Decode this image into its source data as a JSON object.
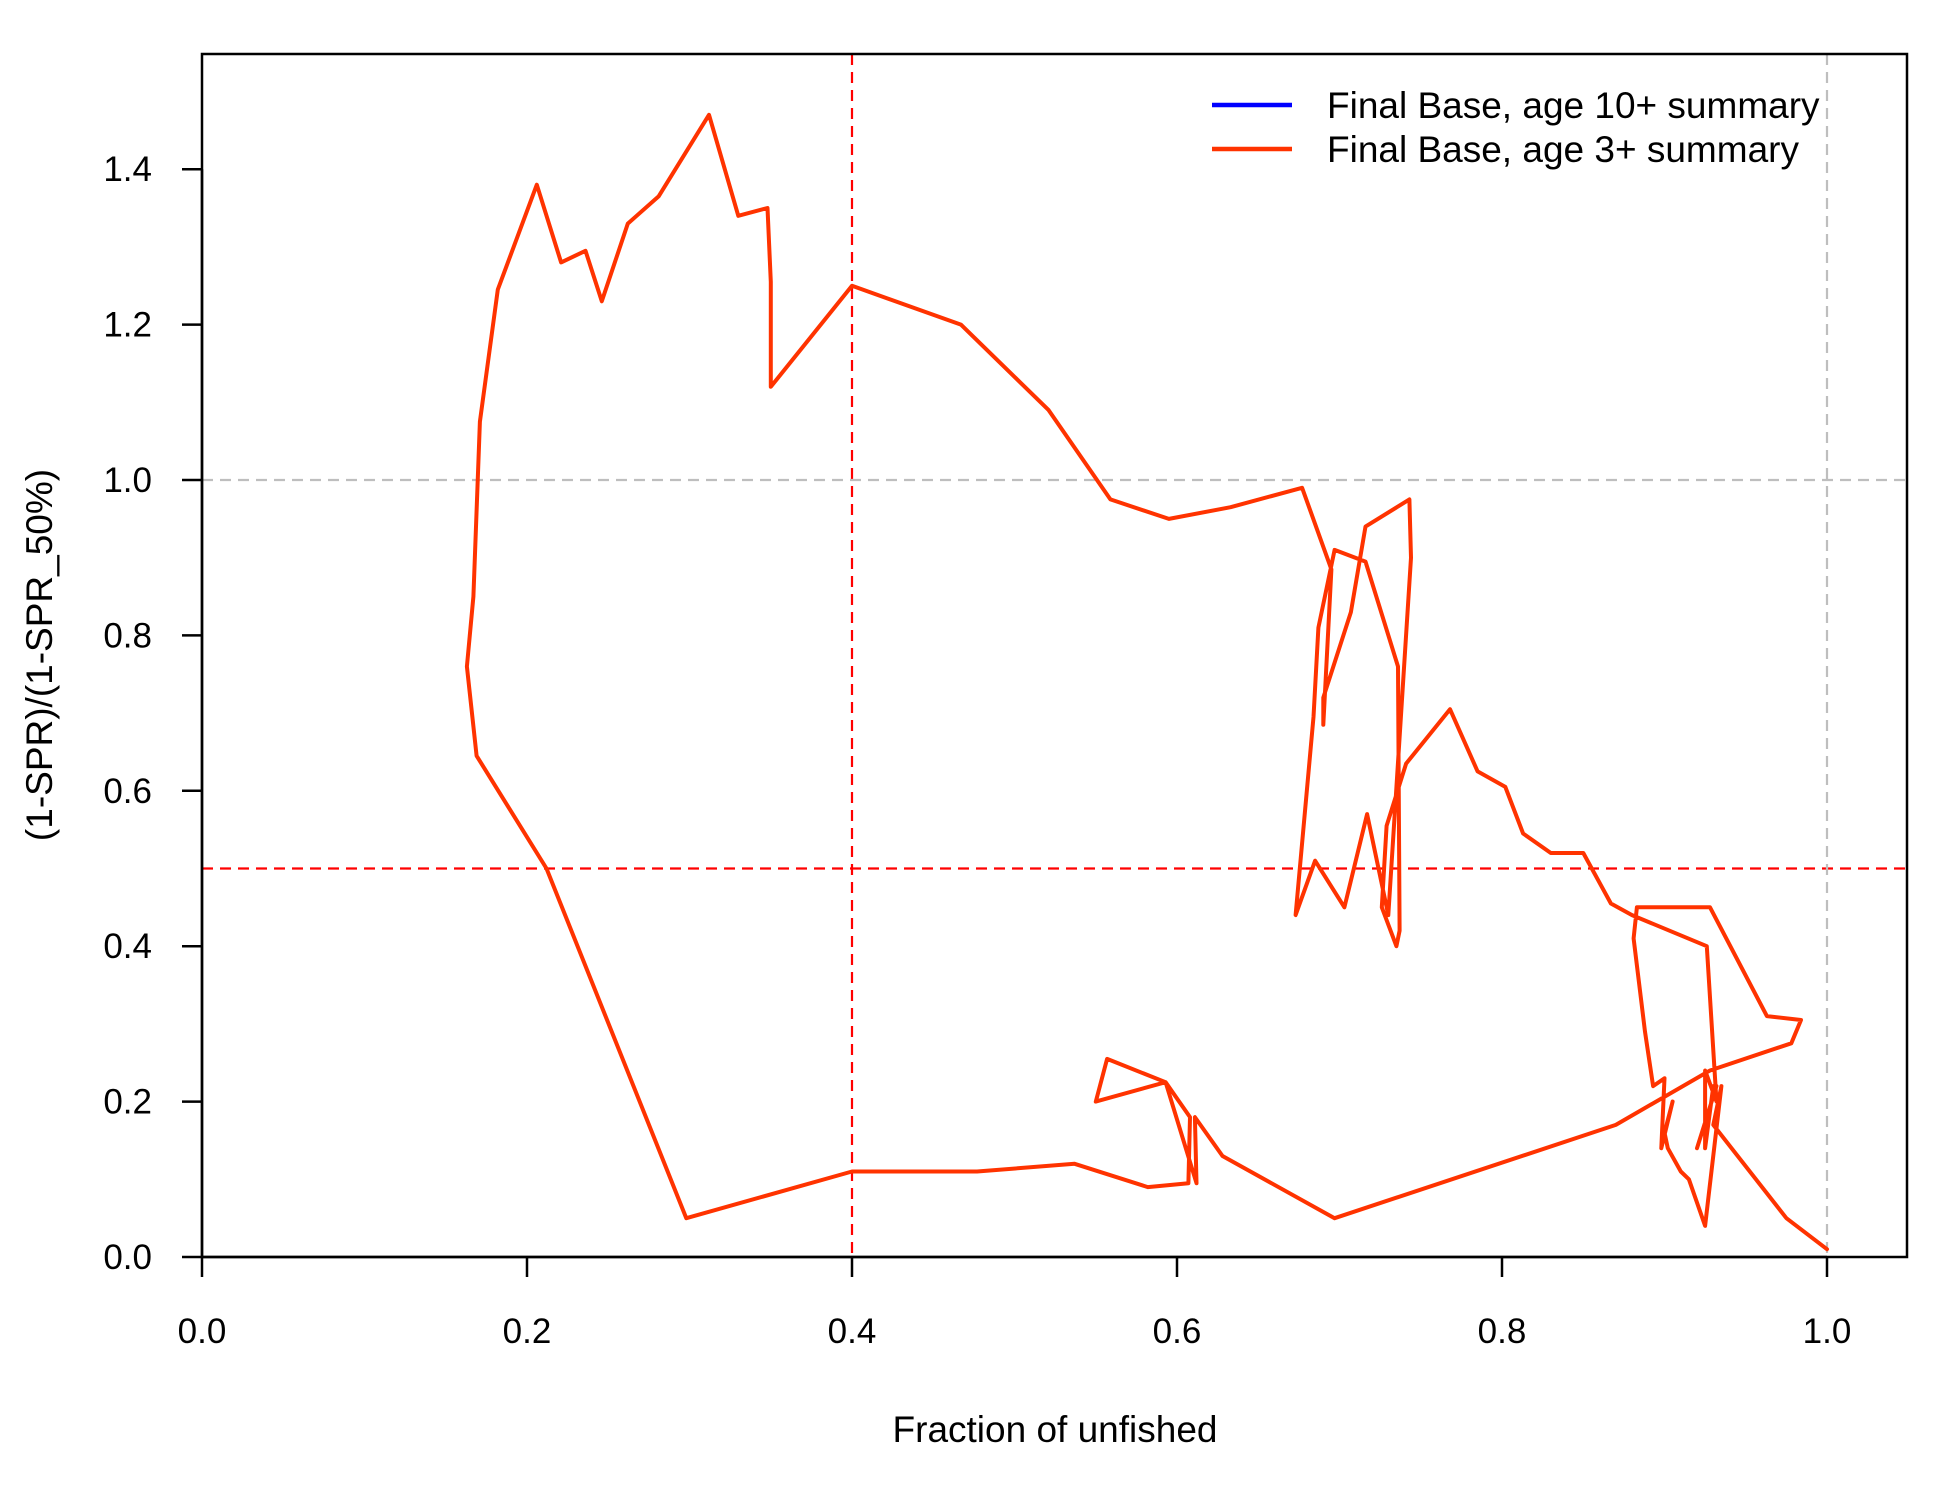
{
  "chart_data": {
    "type": "line",
    "title": "",
    "xlabel": "Fraction of unfished",
    "ylabel": "(1-SPR)/(1-SPR_50%)",
    "xlim": [
      0.0,
      1.05
    ],
    "ylim": [
      0.0,
      1.55
    ],
    "x_ticks": [
      {
        "value": 0.0,
        "label": "0.0"
      },
      {
        "value": 0.2,
        "label": "0.2"
      },
      {
        "value": 0.4,
        "label": "0.4"
      },
      {
        "value": 0.6,
        "label": "0.6"
      },
      {
        "value": 0.8,
        "label": "0.8"
      },
      {
        "value": 1.0,
        "label": "1.0"
      }
    ],
    "y_ticks": [
      {
        "value": 0.0,
        "label": "0.0"
      },
      {
        "value": 0.2,
        "label": "0.2"
      },
      {
        "value": 0.4,
        "label": "0.4"
      },
      {
        "value": 0.6,
        "label": "0.6"
      },
      {
        "value": 0.8,
        "label": "0.8"
      },
      {
        "value": 1.0,
        "label": "1.0"
      },
      {
        "value": 1.2,
        "label": "1.2"
      },
      {
        "value": 1.4,
        "label": "1.4"
      }
    ],
    "reference_lines": [
      {
        "orientation": "vertical",
        "value": 0.4,
        "color": "#ff0000",
        "style": "dashed"
      },
      {
        "orientation": "horizontal",
        "value": 0.5,
        "color": "#ff0000",
        "style": "dashed"
      },
      {
        "orientation": "vertical",
        "value": 1.0,
        "color": "#bebebe",
        "style": "dashed"
      },
      {
        "orientation": "horizontal",
        "value": 1.0,
        "color": "#bebebe",
        "style": "dashed"
      }
    ],
    "legend_position": "top-right",
    "series": [
      {
        "name": "Final Base, age 10+ summary",
        "color": "#0000ff",
        "x": [],
        "y": []
      },
      {
        "name": "Final Base, age 3+ summary",
        "color": "#ff3300",
        "x": [
          1.0,
          0.975,
          0.93,
          0.935,
          0.925,
          0.915,
          0.91,
          0.902,
          0.9,
          0.905,
          0.898,
          0.9,
          0.893,
          0.888,
          0.881,
          0.883,
          0.9,
          0.928,
          0.963,
          0.984,
          0.978,
          0.928,
          0.87,
          0.697,
          0.628,
          0.611,
          0.612,
          0.593,
          0.557,
          0.55,
          0.593,
          0.608,
          0.607,
          0.582,
          0.537,
          0.477,
          0.4,
          0.298,
          0.212,
          0.169,
          0.163,
          0.167,
          0.171,
          0.182,
          0.206,
          0.221,
          0.236,
          0.246,
          0.262,
          0.281,
          0.312,
          0.33,
          0.348,
          0.35,
          0.35,
          0.4,
          0.467,
          0.521,
          0.559,
          0.595,
          0.633,
          0.677,
          0.695,
          0.69,
          0.69,
          0.707,
          0.716,
          0.743,
          0.744,
          0.73,
          0.717,
          0.703,
          0.685,
          0.673,
          0.684,
          0.687,
          0.697,
          0.716,
          0.736,
          0.737,
          0.735,
          0.726,
          0.729,
          0.741,
          0.768,
          0.785,
          0.802,
          0.813,
          0.83,
          0.85,
          0.867,
          0.88,
          0.926,
          0.932,
          0.925,
          0.925,
          0.93,
          0.932,
          0.92
        ],
        "y": [
          0.01,
          0.05,
          0.17,
          0.22,
          0.04,
          0.1,
          0.11,
          0.14,
          0.16,
          0.2,
          0.14,
          0.23,
          0.22,
          0.29,
          0.41,
          0.45,
          0.45,
          0.45,
          0.31,
          0.305,
          0.275,
          0.24,
          0.17,
          0.05,
          0.13,
          0.18,
          0.095,
          0.225,
          0.255,
          0.2,
          0.225,
          0.18,
          0.095,
          0.09,
          0.12,
          0.11,
          0.11,
          0.05,
          0.5,
          0.645,
          0.76,
          0.85,
          1.075,
          1.245,
          1.38,
          1.28,
          1.295,
          1.23,
          1.33,
          1.365,
          1.47,
          1.34,
          1.35,
          1.255,
          1.12,
          1.25,
          1.2,
          1.09,
          0.975,
          0.95,
          0.965,
          0.99,
          0.885,
          0.685,
          0.72,
          0.83,
          0.94,
          0.975,
          0.9,
          0.44,
          0.57,
          0.45,
          0.51,
          0.44,
          0.695,
          0.81,
          0.91,
          0.895,
          0.76,
          0.42,
          0.4,
          0.45,
          0.555,
          0.635,
          0.705,
          0.625,
          0.605,
          0.545,
          0.52,
          0.52,
          0.455,
          0.44,
          0.4,
          0.2,
          0.24,
          0.14,
          0.22,
          0.22,
          0.14
        ]
      }
    ]
  }
}
